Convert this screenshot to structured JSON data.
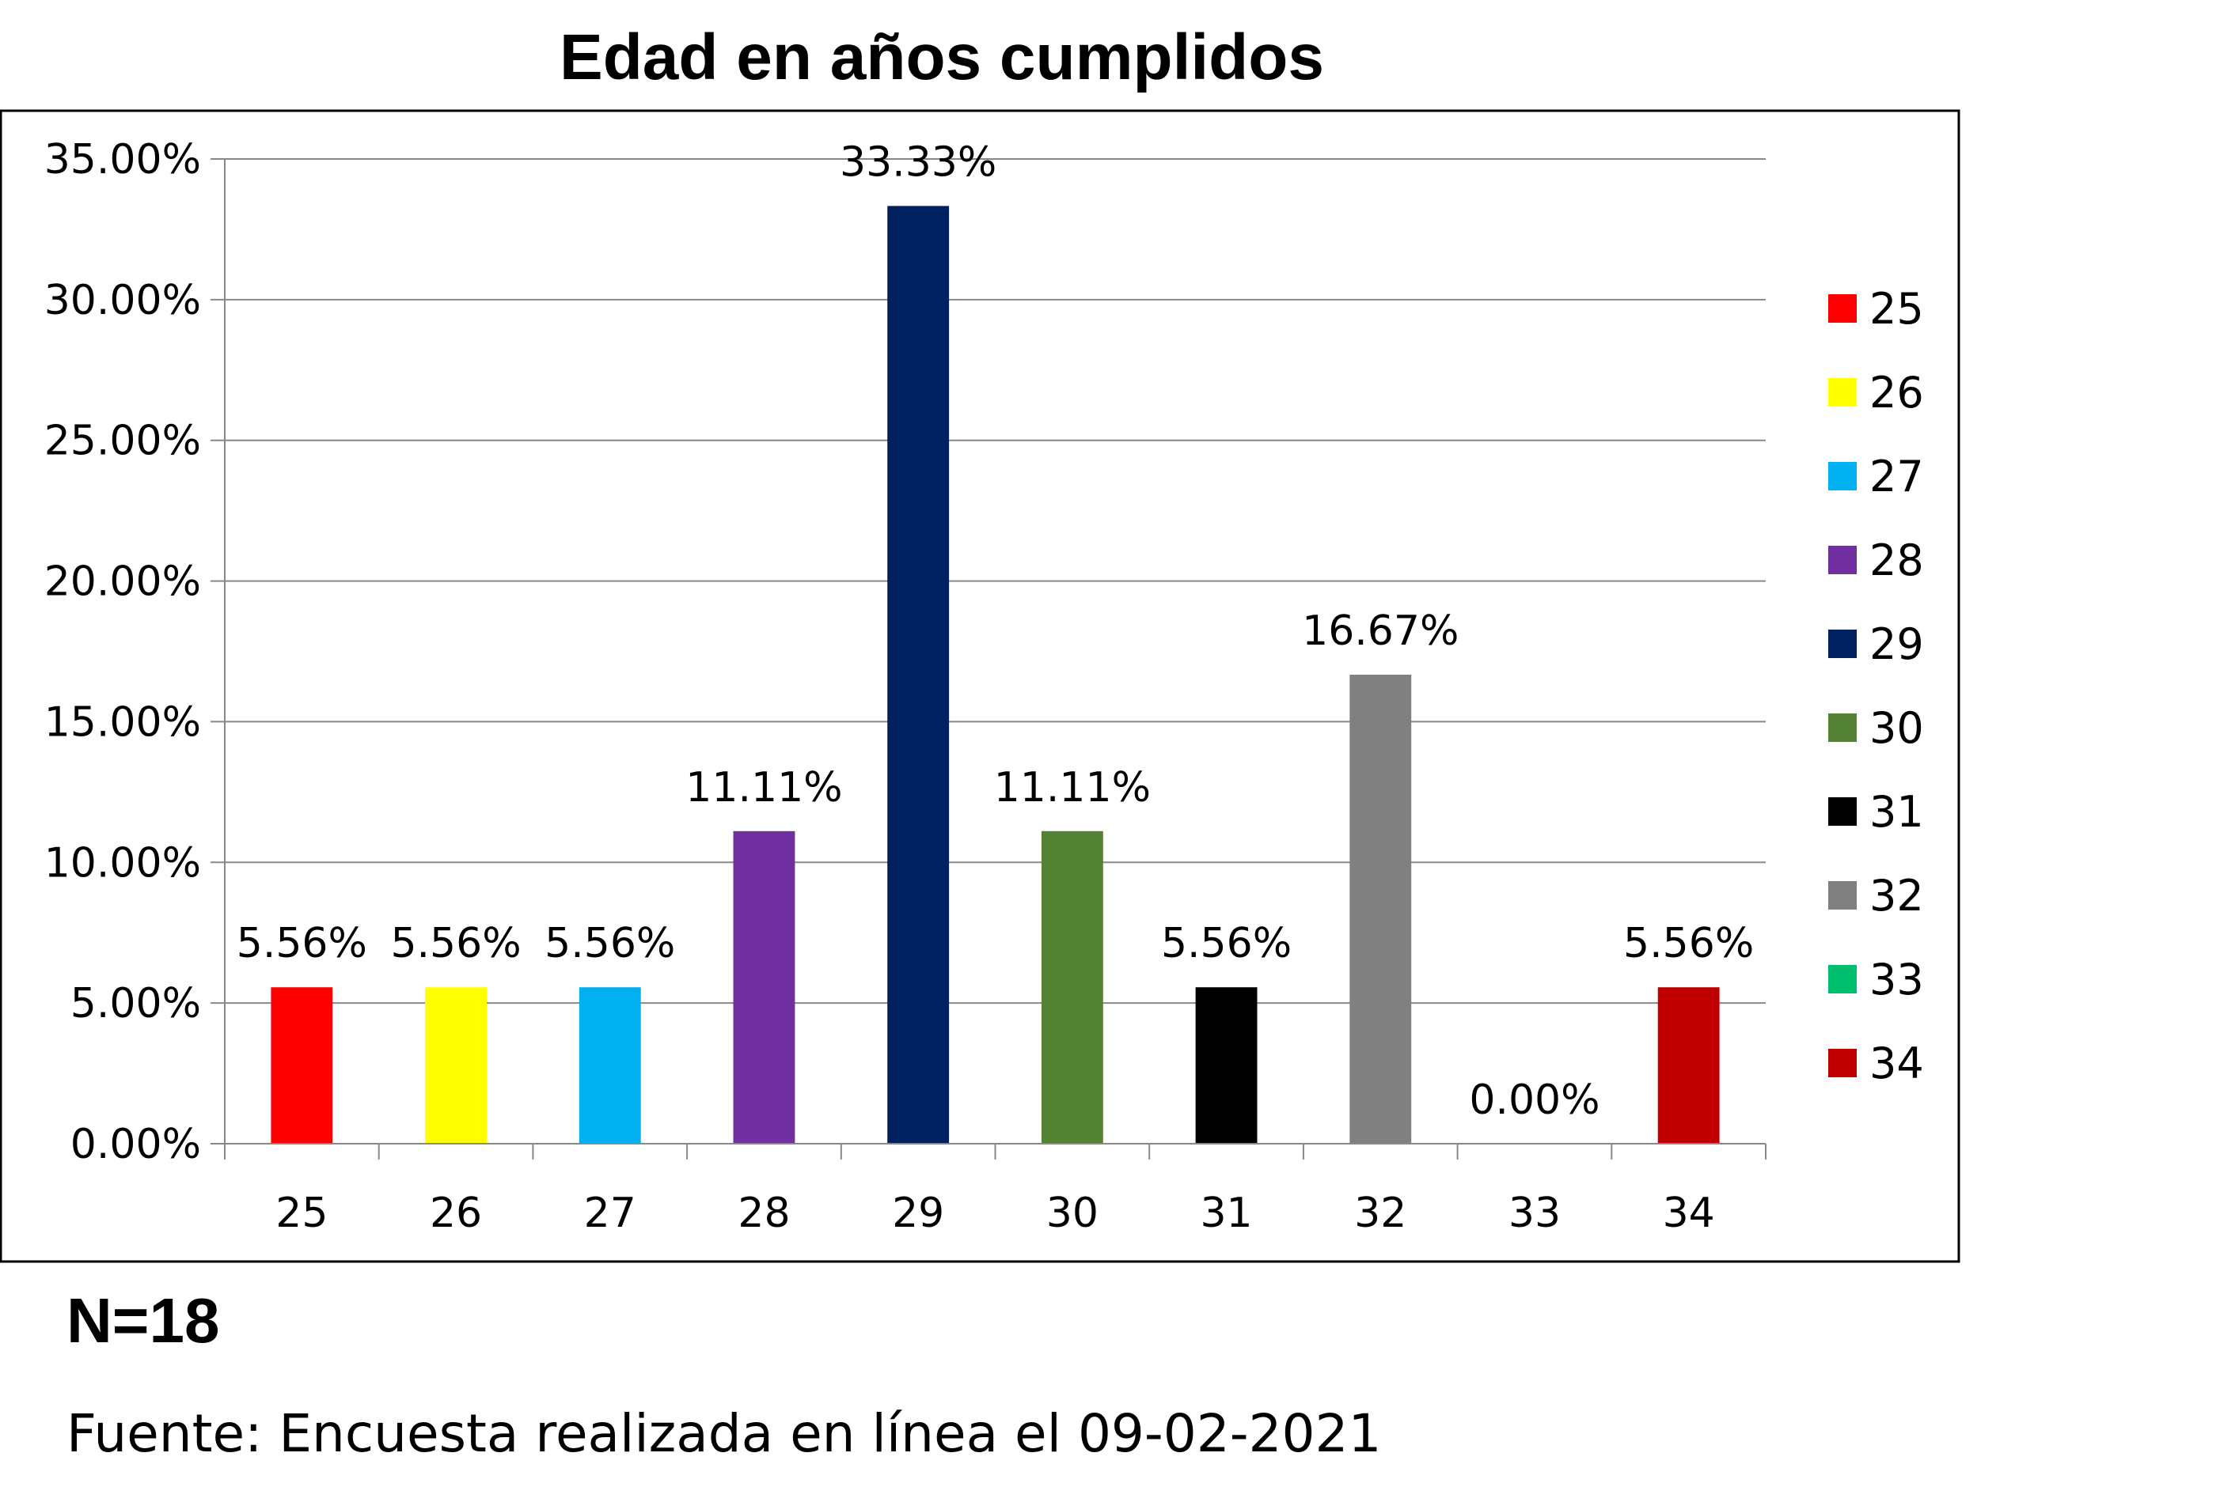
{
  "chart_data": {
    "type": "bar",
    "title": "Edad en años cumplidos",
    "xlabel": "",
    "ylabel": "",
    "categories": [
      "25",
      "26",
      "27",
      "28",
      "29",
      "30",
      "31",
      "32",
      "33",
      "34"
    ],
    "values": [
      5.56,
      5.56,
      5.56,
      11.11,
      33.33,
      11.11,
      5.56,
      16.67,
      0.0,
      5.56
    ],
    "data_labels": [
      "5.56%",
      "5.56%",
      "5.56%",
      "11.11%",
      "33.33%",
      "11.11%",
      "5.56%",
      "16.67%",
      "0.00%",
      "5.56%"
    ],
    "colors": [
      "#FF0000",
      "#FFFF00",
      "#00B0F0",
      "#7030A0",
      "#002060",
      "#548235",
      "#000000",
      "#808080",
      "#00C070",
      "#C00000"
    ],
    "ylim": [
      0,
      35
    ],
    "yticks": [
      0,
      5,
      10,
      15,
      20,
      25,
      30,
      35
    ],
    "ytick_labels": [
      "0.00%",
      "5.00%",
      "10.00%",
      "15.00%",
      "20.00%",
      "25.00%",
      "30.00%",
      "35.00%"
    ],
    "grid": true,
    "legend": {
      "placement": "right",
      "entries": [
        "25",
        "26",
        "27",
        "28",
        "29",
        "30",
        "31",
        "32",
        "33",
        "34"
      ]
    }
  },
  "footer": {
    "sample_size": "N=18",
    "source": "Fuente: Encuesta realizada en línea el 09-02-2021"
  }
}
